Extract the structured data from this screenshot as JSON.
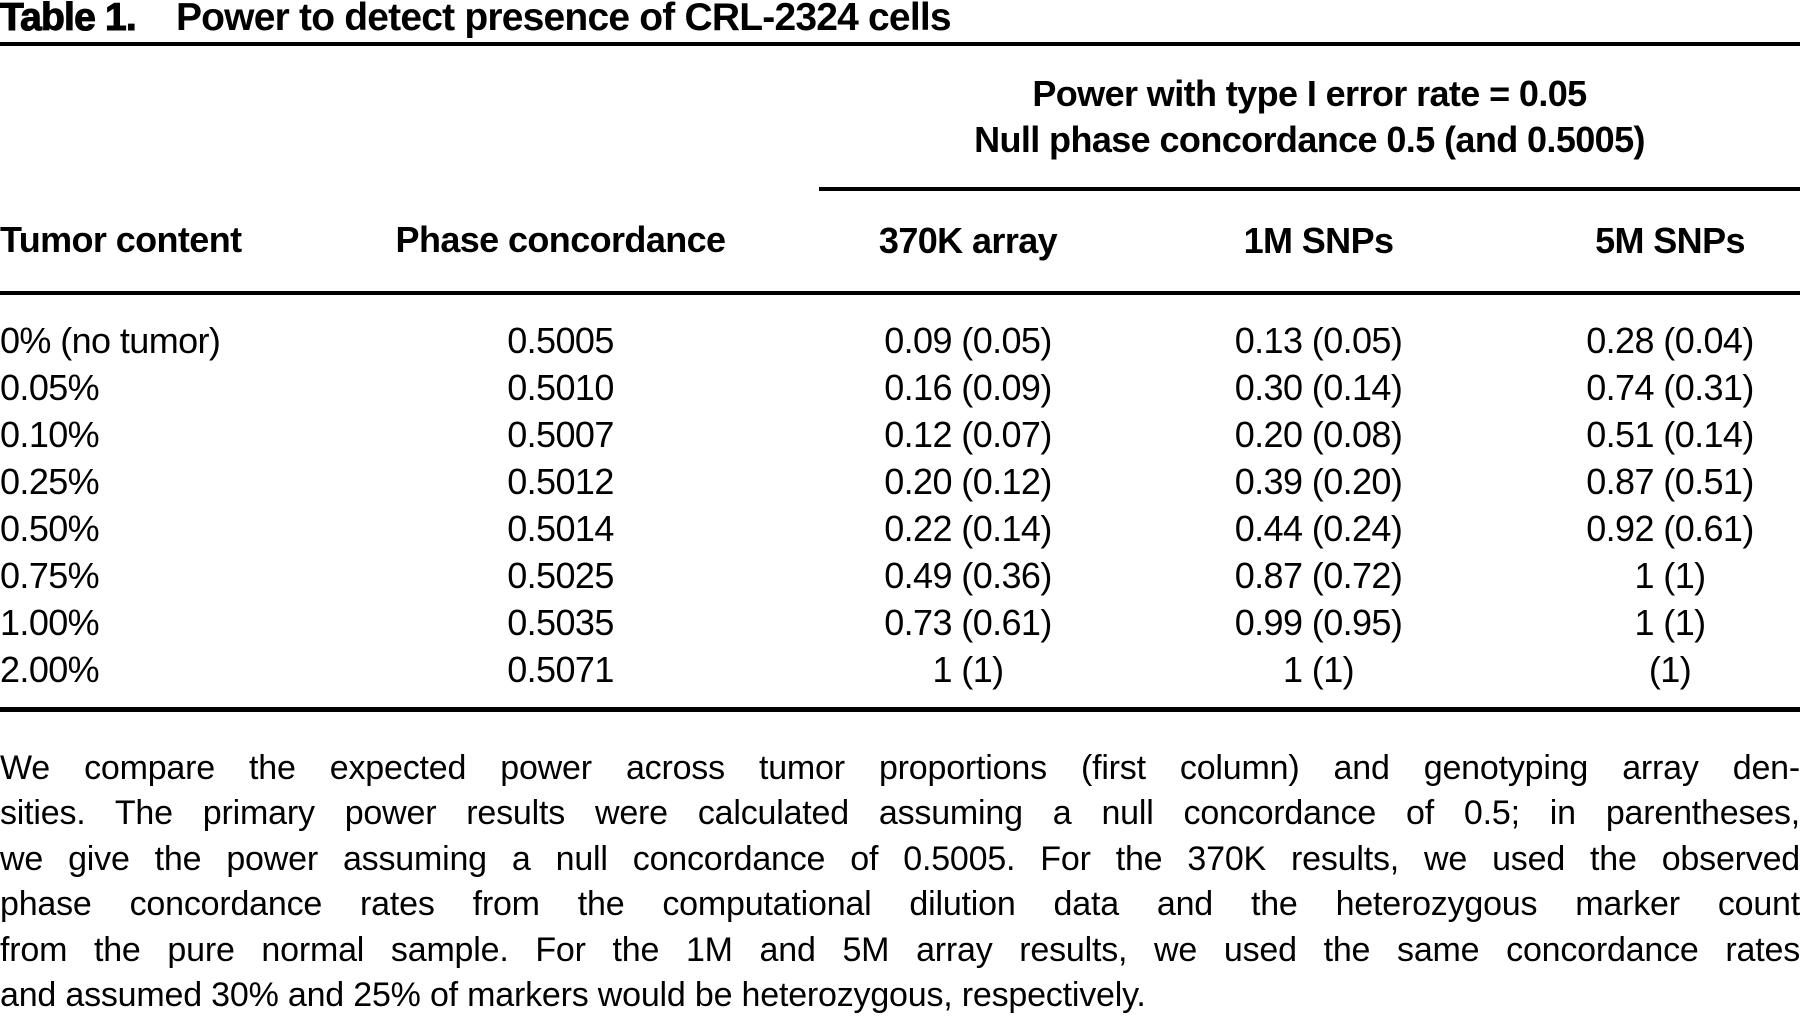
{
  "title": {
    "label": "Table 1.",
    "text": "Power to detect presence of CRL-2324 cells"
  },
  "table": {
    "spanner": {
      "line1": "Power with type I error rate = 0.05",
      "line2": "Null phase concordance 0.5 (and 0.5005)"
    },
    "columns": [
      "Tumor content",
      "Phase concordance",
      "370K array",
      "1M SNPs",
      "5M SNPs"
    ],
    "rows": [
      [
        "0% (no tumor)",
        "0.5005",
        "0.09 (0.05)",
        "0.13 (0.05)",
        "0.28 (0.04)"
      ],
      [
        "0.05%",
        "0.5010",
        "0.16 (0.09)",
        "0.30 (0.14)",
        "0.74 (0.31)"
      ],
      [
        "0.10%",
        "0.5007",
        "0.12 (0.07)",
        "0.20 (0.08)",
        "0.51 (0.14)"
      ],
      [
        "0.25%",
        "0.5012",
        "0.20 (0.12)",
        "0.39 (0.20)",
        "0.87 (0.51)"
      ],
      [
        "0.50%",
        "0.5014",
        "0.22 (0.14)",
        "0.44 (0.24)",
        "0.92 (0.61)"
      ],
      [
        "0.75%",
        "0.5025",
        "0.49 (0.36)",
        "0.87 (0.72)",
        "1 (1)"
      ],
      [
        "1.00%",
        "0.5035",
        "0.73 (0.61)",
        "0.99 (0.95)",
        "1 (1)"
      ],
      [
        "2.00%",
        "0.5071",
        "1 (1)",
        "1 (1)",
        "(1)"
      ]
    ]
  },
  "footnote": {
    "lines": [
      "We compare the expected power across tumor proportions (first column) and genotyping array den-",
      "sities. The primary power results were calculated assuming a null concordance of 0.5; in parentheses,",
      "we give the power assuming a null concordance of 0.5005. For the 370K results, we used the observed",
      "phase concordance rates from the computational dilution data and the heterozygous marker count",
      "from the pure normal sample. For the 1M and 5M array results, we used the same concordance rates",
      "and assumed 30% and 25% of markers would be heterozygous, respectively."
    ]
  }
}
